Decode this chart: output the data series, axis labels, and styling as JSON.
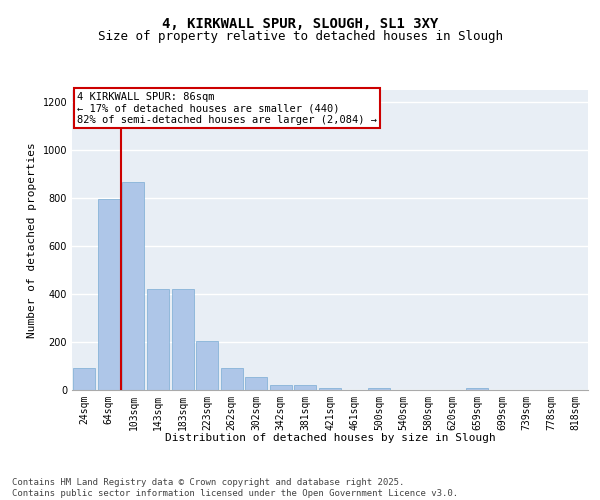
{
  "title_line1": "4, KIRKWALL SPUR, SLOUGH, SL1 3XY",
  "title_line2": "Size of property relative to detached houses in Slough",
  "xlabel": "Distribution of detached houses by size in Slough",
  "ylabel": "Number of detached properties",
  "categories": [
    "24sqm",
    "64sqm",
    "103sqm",
    "143sqm",
    "183sqm",
    "223sqm",
    "262sqm",
    "302sqm",
    "342sqm",
    "381sqm",
    "421sqm",
    "461sqm",
    "500sqm",
    "540sqm",
    "580sqm",
    "620sqm",
    "659sqm",
    "699sqm",
    "739sqm",
    "778sqm",
    "818sqm"
  ],
  "values": [
    90,
    795,
    865,
    420,
    420,
    205,
    90,
    55,
    20,
    20,
    10,
    0,
    10,
    0,
    0,
    0,
    10,
    0,
    0,
    0,
    0
  ],
  "bar_color": "#aec6e8",
  "bar_edge_color": "#7aacd4",
  "vline_x": 1.5,
  "vline_color": "#cc0000",
  "annotation_text": "4 KIRKWALL SPUR: 86sqm\n← 17% of detached houses are smaller (440)\n82% of semi-detached houses are larger (2,084) →",
  "annotation_box_color": "#cc0000",
  "ylim": [
    0,
    1250
  ],
  "yticks": [
    0,
    200,
    400,
    600,
    800,
    1000,
    1200
  ],
  "background_color": "#e8eef5",
  "grid_color": "#ffffff",
  "footer_line1": "Contains HM Land Registry data © Crown copyright and database right 2025.",
  "footer_line2": "Contains public sector information licensed under the Open Government Licence v3.0.",
  "title_fontsize": 10,
  "subtitle_fontsize": 9,
  "axis_label_fontsize": 8,
  "tick_fontsize": 7,
  "annotation_fontsize": 7.5,
  "footer_fontsize": 6.5
}
